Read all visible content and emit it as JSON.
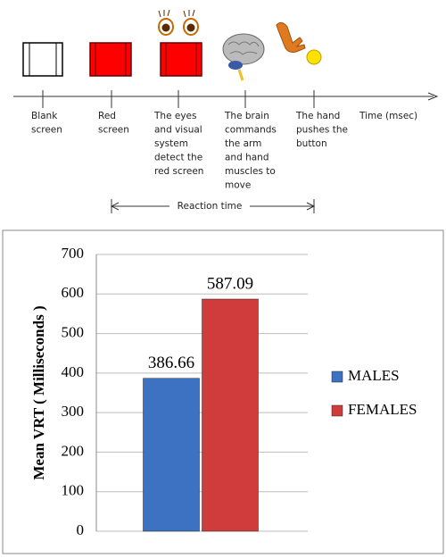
{
  "diagram": {
    "steps": [
      {
        "label": [
          "Blank",
          "screen"
        ]
      },
      {
        "label": [
          "Red",
          "screen"
        ]
      },
      {
        "label": [
          "The eyes",
          "and visual",
          "system",
          "detect the",
          "red screen"
        ]
      },
      {
        "label": [
          "The brain",
          "commands",
          "the arm",
          "and hand",
          "muscles to",
          "move"
        ]
      },
      {
        "label": [
          "The hand",
          "pushes the",
          "button"
        ]
      }
    ],
    "axis_label": "Time (msec)",
    "span_label": "Reaction time"
  },
  "chart_data": {
    "type": "bar",
    "y_label": "Mean VRT ( Milliseconds )",
    "categories": [
      null
    ],
    "series": [
      {
        "name": "MALES",
        "color": "#3d71c2",
        "values": [
          386.66
        ]
      },
      {
        "name": "FEMALES",
        "color": "#d03c3c",
        "values": [
          587.09
        ]
      }
    ],
    "ylim": [
      0,
      700
    ],
    "yticks": [
      0,
      100,
      200,
      300,
      400,
      500,
      600,
      700
    ],
    "grid": true,
    "legend": "right"
  }
}
